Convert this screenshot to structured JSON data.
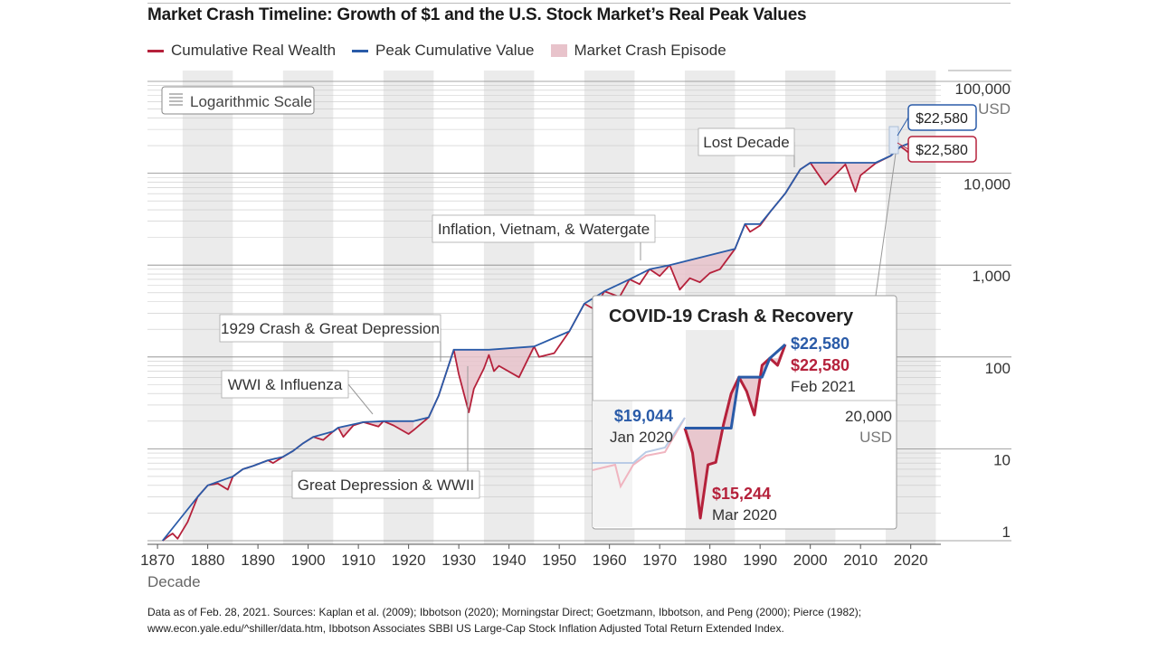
{
  "title": "Market Crash Timeline: Growth of $1 and the U.S. Stock Market’s Real Peak Values",
  "legend": [
    {
      "label": "Cumulative Real Wealth",
      "color": "#b5213b",
      "kind": "line"
    },
    {
      "label": "Peak Cumulative Value",
      "color": "#2a5ba8",
      "kind": "line"
    },
    {
      "label": "Market Crash Episode",
      "color": "#e8c3cb",
      "kind": "box"
    }
  ],
  "scale_badge": "Logarithmic Scale",
  "footnote": [
    "Data as of Feb. 28, 2021. Sources: Kaplan et al. (2009); Ibbotson (2020); Morningstar Direct; Goetzmann, Ibbotson, and Peng (2000); Pierce (1982);",
    "www.econ.yale.edu/^shiller/data.htm, Ibbotson Associates SBBI US Large-Cap Stock Inflation Adjusted Total Return Extended Index."
  ],
  "colors": {
    "wealth": "#b5213b",
    "peak": "#2a5ba8",
    "crash_fill": "#e8c3cb",
    "band": "#ebebeb"
  },
  "chart_data": [
    {
      "type": "line",
      "title": "Market Crash Timeline: Growth of $1 and the U.S. Stock Market’s Real Peak Values",
      "xlabel": "Decade",
      "ylabel": "USD",
      "yscale": "log",
      "xlim": [
        1868,
        2026
      ],
      "ylim": [
        1,
        100000
      ],
      "x_ticks": [
        "1870",
        "1880",
        "1890",
        "1900",
        "1910",
        "1920",
        "1930",
        "1940",
        "1950",
        "1960",
        "1970",
        "1980",
        "1990",
        "2000",
        "2010",
        "2020"
      ],
      "y_ticks": [
        {
          "value": 100000,
          "label": "100,000"
        },
        {
          "value": 10000,
          "label": "10,000"
        },
        {
          "value": 1000,
          "label": "1,000"
        },
        {
          "value": 100,
          "label": "100"
        },
        {
          "value": 10,
          "label": "10"
        },
        {
          "value": 1,
          "label": "1"
        }
      ],
      "y_unit_label": "USD",
      "grid": true,
      "series": [
        {
          "name": "Cumulative Real Wealth",
          "color": "#b5213b",
          "x": [
            1871,
            1872,
            1873,
            1874,
            1875,
            1876,
            1877,
            1878,
            1880,
            1882,
            1884,
            1885,
            1887,
            1889,
            1892,
            1893,
            1895,
            1897,
            1899,
            1901,
            1903,
            1905,
            1906,
            1907,
            1909,
            1911,
            1914,
            1915,
            1917,
            1920,
            1921,
            1924,
            1926,
            1929,
            1930,
            1932,
            1933,
            1935,
            1936,
            1937,
            1938,
            1942,
            1945,
            1946,
            1949,
            1952,
            1955,
            1957,
            1959,
            1962,
            1964,
            1966,
            1968,
            1970,
            1972,
            1974,
            1976,
            1978,
            1980,
            1982,
            1985,
            1987,
            1988,
            1990,
            1992,
            1995,
            1998,
            2000,
            2002,
            2003,
            2006,
            2007,
            2009,
            2010,
            2013,
            2016,
            2018,
            2019,
            2020,
            2021
          ],
          "y": [
            1,
            1.1,
            1.2,
            1.05,
            1.3,
            1.6,
            2.2,
            3.0,
            4.0,
            4.2,
            3.6,
            5.0,
            6.0,
            6.5,
            7.5,
            7.0,
            8.2,
            9.5,
            11.5,
            13.5,
            12.5,
            15.5,
            17.0,
            13.5,
            18.0,
            19.5,
            17.5,
            20.0,
            18.0,
            14.5,
            16.0,
            22.0,
            38.0,
            120.0,
            65.0,
            25.0,
            45.0,
            75.0,
            105.0,
            70.0,
            80.0,
            60.0,
            130.0,
            100.0,
            110.0,
            190.0,
            380.0,
            330.0,
            520.0,
            450.0,
            700.0,
            620.0,
            900.0,
            760.0,
            1000.0,
            540.0,
            720.0,
            650.0,
            820.0,
            900.0,
            1500.0,
            2800.0,
            2300.0,
            2700.0,
            3800.0,
            6000.0,
            11000.0,
            13000.0,
            9000.0,
            7500.0,
            11000.0,
            12500.0,
            6300.0,
            9500.0,
            12800.0,
            15500.0,
            19500.0,
            17800.0,
            16000.0,
            22580.0
          ]
        },
        {
          "name": "Peak Cumulative Value",
          "color": "#2a5ba8",
          "x": [
            1871,
            1878,
            1880,
            1885,
            1887,
            1889,
            1892,
            1895,
            1897,
            1899,
            1901,
            1905,
            1906,
            1911,
            1915,
            1921,
            1924,
            1926,
            1929,
            1936,
            1945,
            1952,
            1955,
            1959,
            1964,
            1968,
            1972,
            1985,
            1987,
            1990,
            1992,
            1995,
            1998,
            2000,
            2013,
            2016,
            2018,
            2021
          ],
          "y": [
            1,
            3.0,
            4.0,
            5.0,
            6.0,
            6.5,
            7.5,
            8.2,
            9.5,
            11.5,
            13.5,
            15.5,
            17.0,
            19.5,
            20.0,
            20.0,
            22.0,
            38.0,
            120.0,
            120.0,
            130.0,
            190.0,
            380.0,
            520.0,
            700.0,
            900.0,
            1000.0,
            1500.0,
            2800.0,
            2800.0,
            3800.0,
            6000.0,
            11000.0,
            13000.0,
            13000.0,
            15500.0,
            19500.0,
            22580.0
          ]
        }
      ],
      "crash_episodes": [
        {
          "label": "WWI & Influenza",
          "start": 1906,
          "end": 1921
        },
        {
          "label": "1929 Crash & Great Depression",
          "start": 1929,
          "end": 1936
        },
        {
          "label": "Great Depression & WWII",
          "start": 1936,
          "end": 1945
        },
        {
          "label": "Inflation, Vietnam, & Watergate",
          "start": 1968,
          "end": 1985
        },
        {
          "label": "Lost Decade",
          "start": 2000,
          "end": 2013
        }
      ],
      "end_values": {
        "peak": "$22,580",
        "wealth": "$22,580"
      }
    },
    {
      "type": "line",
      "title": "COVID-19 Crash & Recovery",
      "y_tick_label": "20,000",
      "y_unit_label": "USD",
      "series": [
        {
          "name": "Cumulative Real Wealth",
          "color": "#b5213b",
          "x": [
            "Jan 2020",
            "Feb 2020",
            "Mar 2020",
            "Apr 2020",
            "May 2020",
            "Jun 2020",
            "Jul 2020",
            "Aug 2020",
            "Sep 2020",
            "Oct 2020",
            "Nov 2020",
            "Dec 2020",
            "Jan 2021",
            "Feb 2021"
          ],
          "y": [
            19044,
            18000,
            15244,
            17500,
            17600,
            19200,
            20500,
            21200,
            20600,
            19600,
            21700,
            22000,
            21700,
            22580
          ]
        },
        {
          "name": "Peak Cumulative Value",
          "color": "#2a5ba8",
          "x": [
            "Jan 2020",
            "Jul 2020",
            "Aug 2020",
            "Nov 2020",
            "Dec 2020",
            "Feb 2021"
          ],
          "y": [
            19044,
            19044,
            21200,
            21200,
            22000,
            22580
          ]
        }
      ],
      "annotations": [
        {
          "value": "$19,044",
          "date": "Jan 2020"
        },
        {
          "value": "$15,244",
          "date": "Mar 2020"
        },
        {
          "value": "$22,580",
          "date": "Feb 2021"
        },
        {
          "value": "$22,580",
          "date": ""
        }
      ]
    }
  ]
}
